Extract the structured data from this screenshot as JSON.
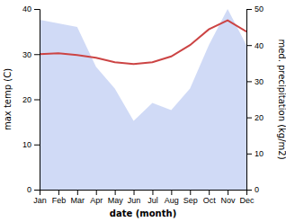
{
  "chart_data": {
    "type": "line",
    "categories": [
      "Jan",
      "Feb",
      "Mar",
      "Apr",
      "May",
      "Jun",
      "Jul",
      "Aug",
      "Sep",
      "Oct",
      "Nov",
      "Dec"
    ],
    "series": [
      {
        "type": "area",
        "axis": "y2",
        "color": "#aabbee",
        "values": [
          47,
          46,
          45,
          34,
          28,
          19,
          24,
          22,
          28,
          40,
          50,
          40
        ]
      },
      {
        "type": "line",
        "color": "#cc4444",
        "values": [
          30.0,
          30.2,
          29.8,
          29.2,
          28.2,
          27.8,
          28.2,
          29.5,
          32.0,
          35.5,
          37.5,
          35.0
        ]
      }
    ],
    "xlabel": "date (month)",
    "ylabel": "max temp (C)",
    "y2label": "med. precipitation (kg/m2)",
    "ylim": [
      0,
      40
    ],
    "yticks": [
      0,
      10,
      20,
      30,
      40
    ],
    "y2lim": [
      0,
      50
    ],
    "y2ticks": [
      0,
      10,
      20,
      30,
      40,
      50
    ],
    "grid": false
  }
}
